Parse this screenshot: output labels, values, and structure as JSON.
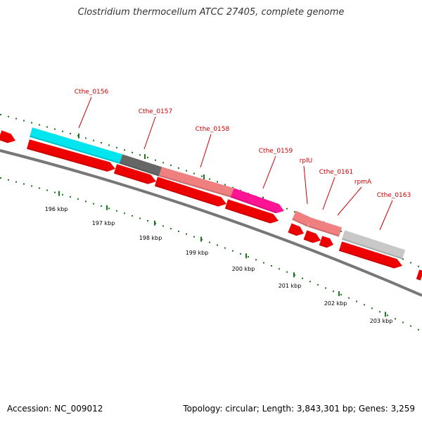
{
  "title": "Clostridium thermocellum ATCC 27405, complete genome",
  "accession": {
    "label": "Accession:",
    "value": "NC_009012"
  },
  "topology": "Topology: circular; Length: 3,843,301 bp; Genes: 3,259",
  "colors": {
    "backbone": "#777777",
    "tick": "#1a7a1a",
    "cds": "#ee0000",
    "label": "#cc0000",
    "cyan": "#00e5ee",
    "darkgray": "#666666",
    "salmon": "#f08080",
    "pink": "#ff1493",
    "lightgray": "#c8c8c8"
  },
  "genes": [
    {
      "label": "Cthe_0156",
      "color": "cyan"
    },
    {
      "label": "Cthe_0157",
      "color": "darkgray"
    },
    {
      "label": "Cthe_0158",
      "color": "salmon"
    },
    {
      "label": "Cthe_0159",
      "color": "pink"
    },
    {
      "label": "rplU",
      "color": "salmon"
    },
    {
      "label": "Cthe_0161",
      "color": "salmon"
    },
    {
      "label": "rpmA",
      "color": "salmon"
    },
    {
      "label": "Cthe_0163",
      "color": "lightgray"
    }
  ],
  "kbp_labels": [
    "196 kbp",
    "197 kbp",
    "198 kbp",
    "199 kbp",
    "200 kbp",
    "201 kbp",
    "202 kbp",
    "203 kbp"
  ]
}
